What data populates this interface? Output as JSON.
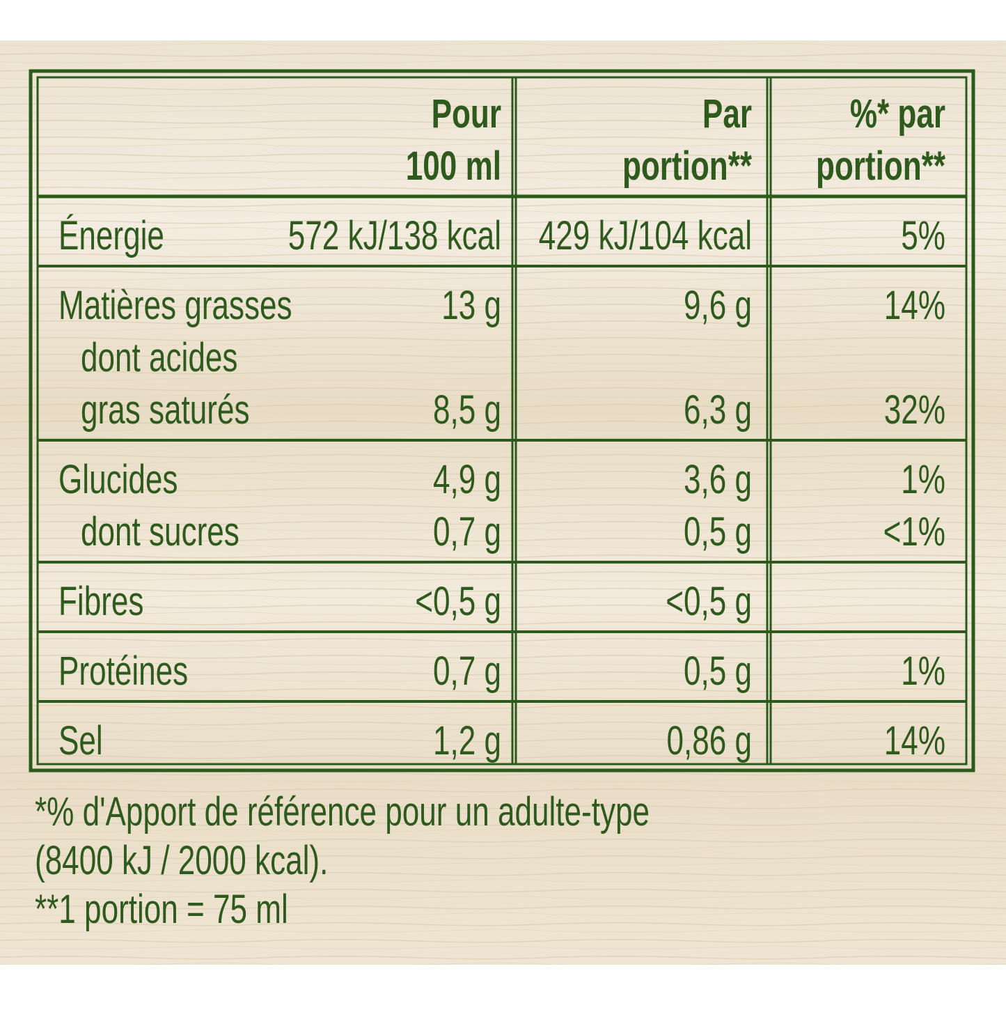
{
  "table": {
    "header": [
      [
        "Pour",
        "100 ml"
      ],
      [
        "Par",
        "portion**"
      ],
      [
        "%* par",
        "portion**"
      ]
    ],
    "groups": [
      [
        {
          "label": "Énergie",
          "c1": "572 kJ/138 kcal",
          "c2": "429 kJ/104 kcal",
          "c3": "5%"
        }
      ],
      [
        {
          "label": "Matières grasses",
          "c1": "13 g",
          "c2": "9,6 g",
          "c3": "14%"
        },
        {
          "sub": "dont acides"
        },
        {
          "sub": "gras saturés",
          "c1": "8,5 g",
          "c2": "6,3 g",
          "c3": "32%"
        }
      ],
      [
        {
          "label": "Glucides",
          "c1": "4,9 g",
          "c2": "3,6 g",
          "c3": "1%"
        },
        {
          "sub": "dont sucres",
          "c1": "0,7 g",
          "c2": "0,5 g",
          "c3": "<1%"
        }
      ],
      [
        {
          "label": "Fibres",
          "c1": "<0,5 g",
          "c2": "<0,5 g"
        }
      ],
      [
        {
          "label": "Protéines",
          "c1": "0,7 g",
          "c2": "0,5 g",
          "c3": "1%"
        }
      ],
      [
        {
          "label": "Sel",
          "c1": "1,2 g",
          "c2": "0,86 g",
          "c3": "14%"
        }
      ]
    ]
  },
  "footnotes": [
    "*% d'Apport de référence pour un adulte-type",
    "(8400 kJ / 2000 kcal).",
    "**1 portion = 75 ml"
  ]
}
